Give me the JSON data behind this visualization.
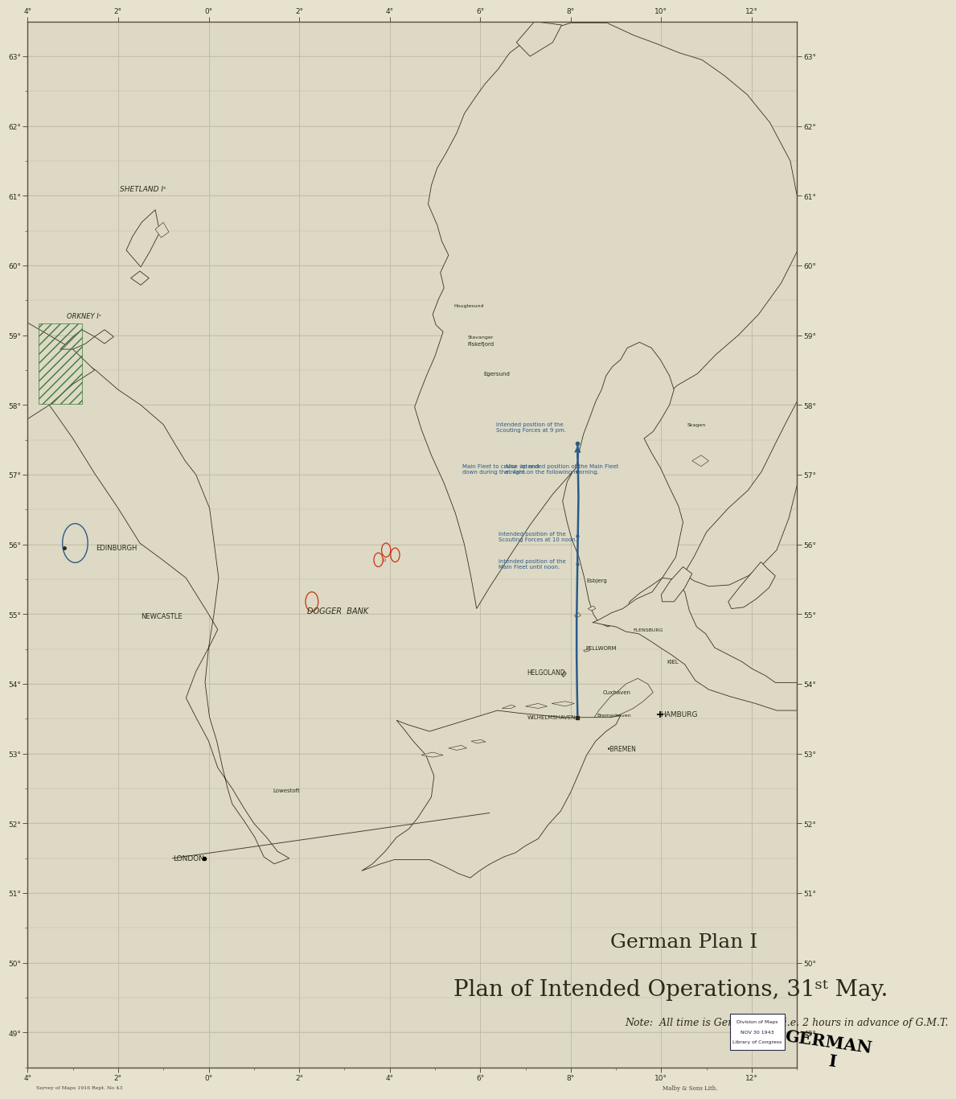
{
  "background_color": "#e6e2ce",
  "map_bg": "#ddd9c4",
  "border_color": "#5a5040",
  "grid_color": "#c0baa6",
  "coast_color": "#3a3020",
  "route_color": "#2a5a8a",
  "text_color": "#2a2a1a",
  "label_color": "#2a2a1a",
  "blue_text": "#2a5a8a",
  "red_circle": "#cc3311",
  "green_hatch": "#4a7a3a",
  "title1": "German Plan I",
  "title2": "Plan of Intended Operations, 31ˢᵗ May.",
  "note": "Note:  All time is German time i.e. 2 hours in advance of G.M.T.",
  "lon_min": -4,
  "lon_max": 13,
  "lat_min": 48.5,
  "lat_max": 63.5,
  "lon_ticks": [
    -4,
    -2,
    0,
    2,
    4,
    6,
    8,
    10,
    12
  ],
  "lat_ticks": [
    49,
    50,
    51,
    52,
    53,
    54,
    55,
    56,
    57,
    58,
    59,
    60,
    61,
    62,
    63
  ],
  "fig_width": 11.0,
  "fig_height": 13.98,
  "title1_size": 18,
  "title2_size": 20,
  "note_size": 9
}
